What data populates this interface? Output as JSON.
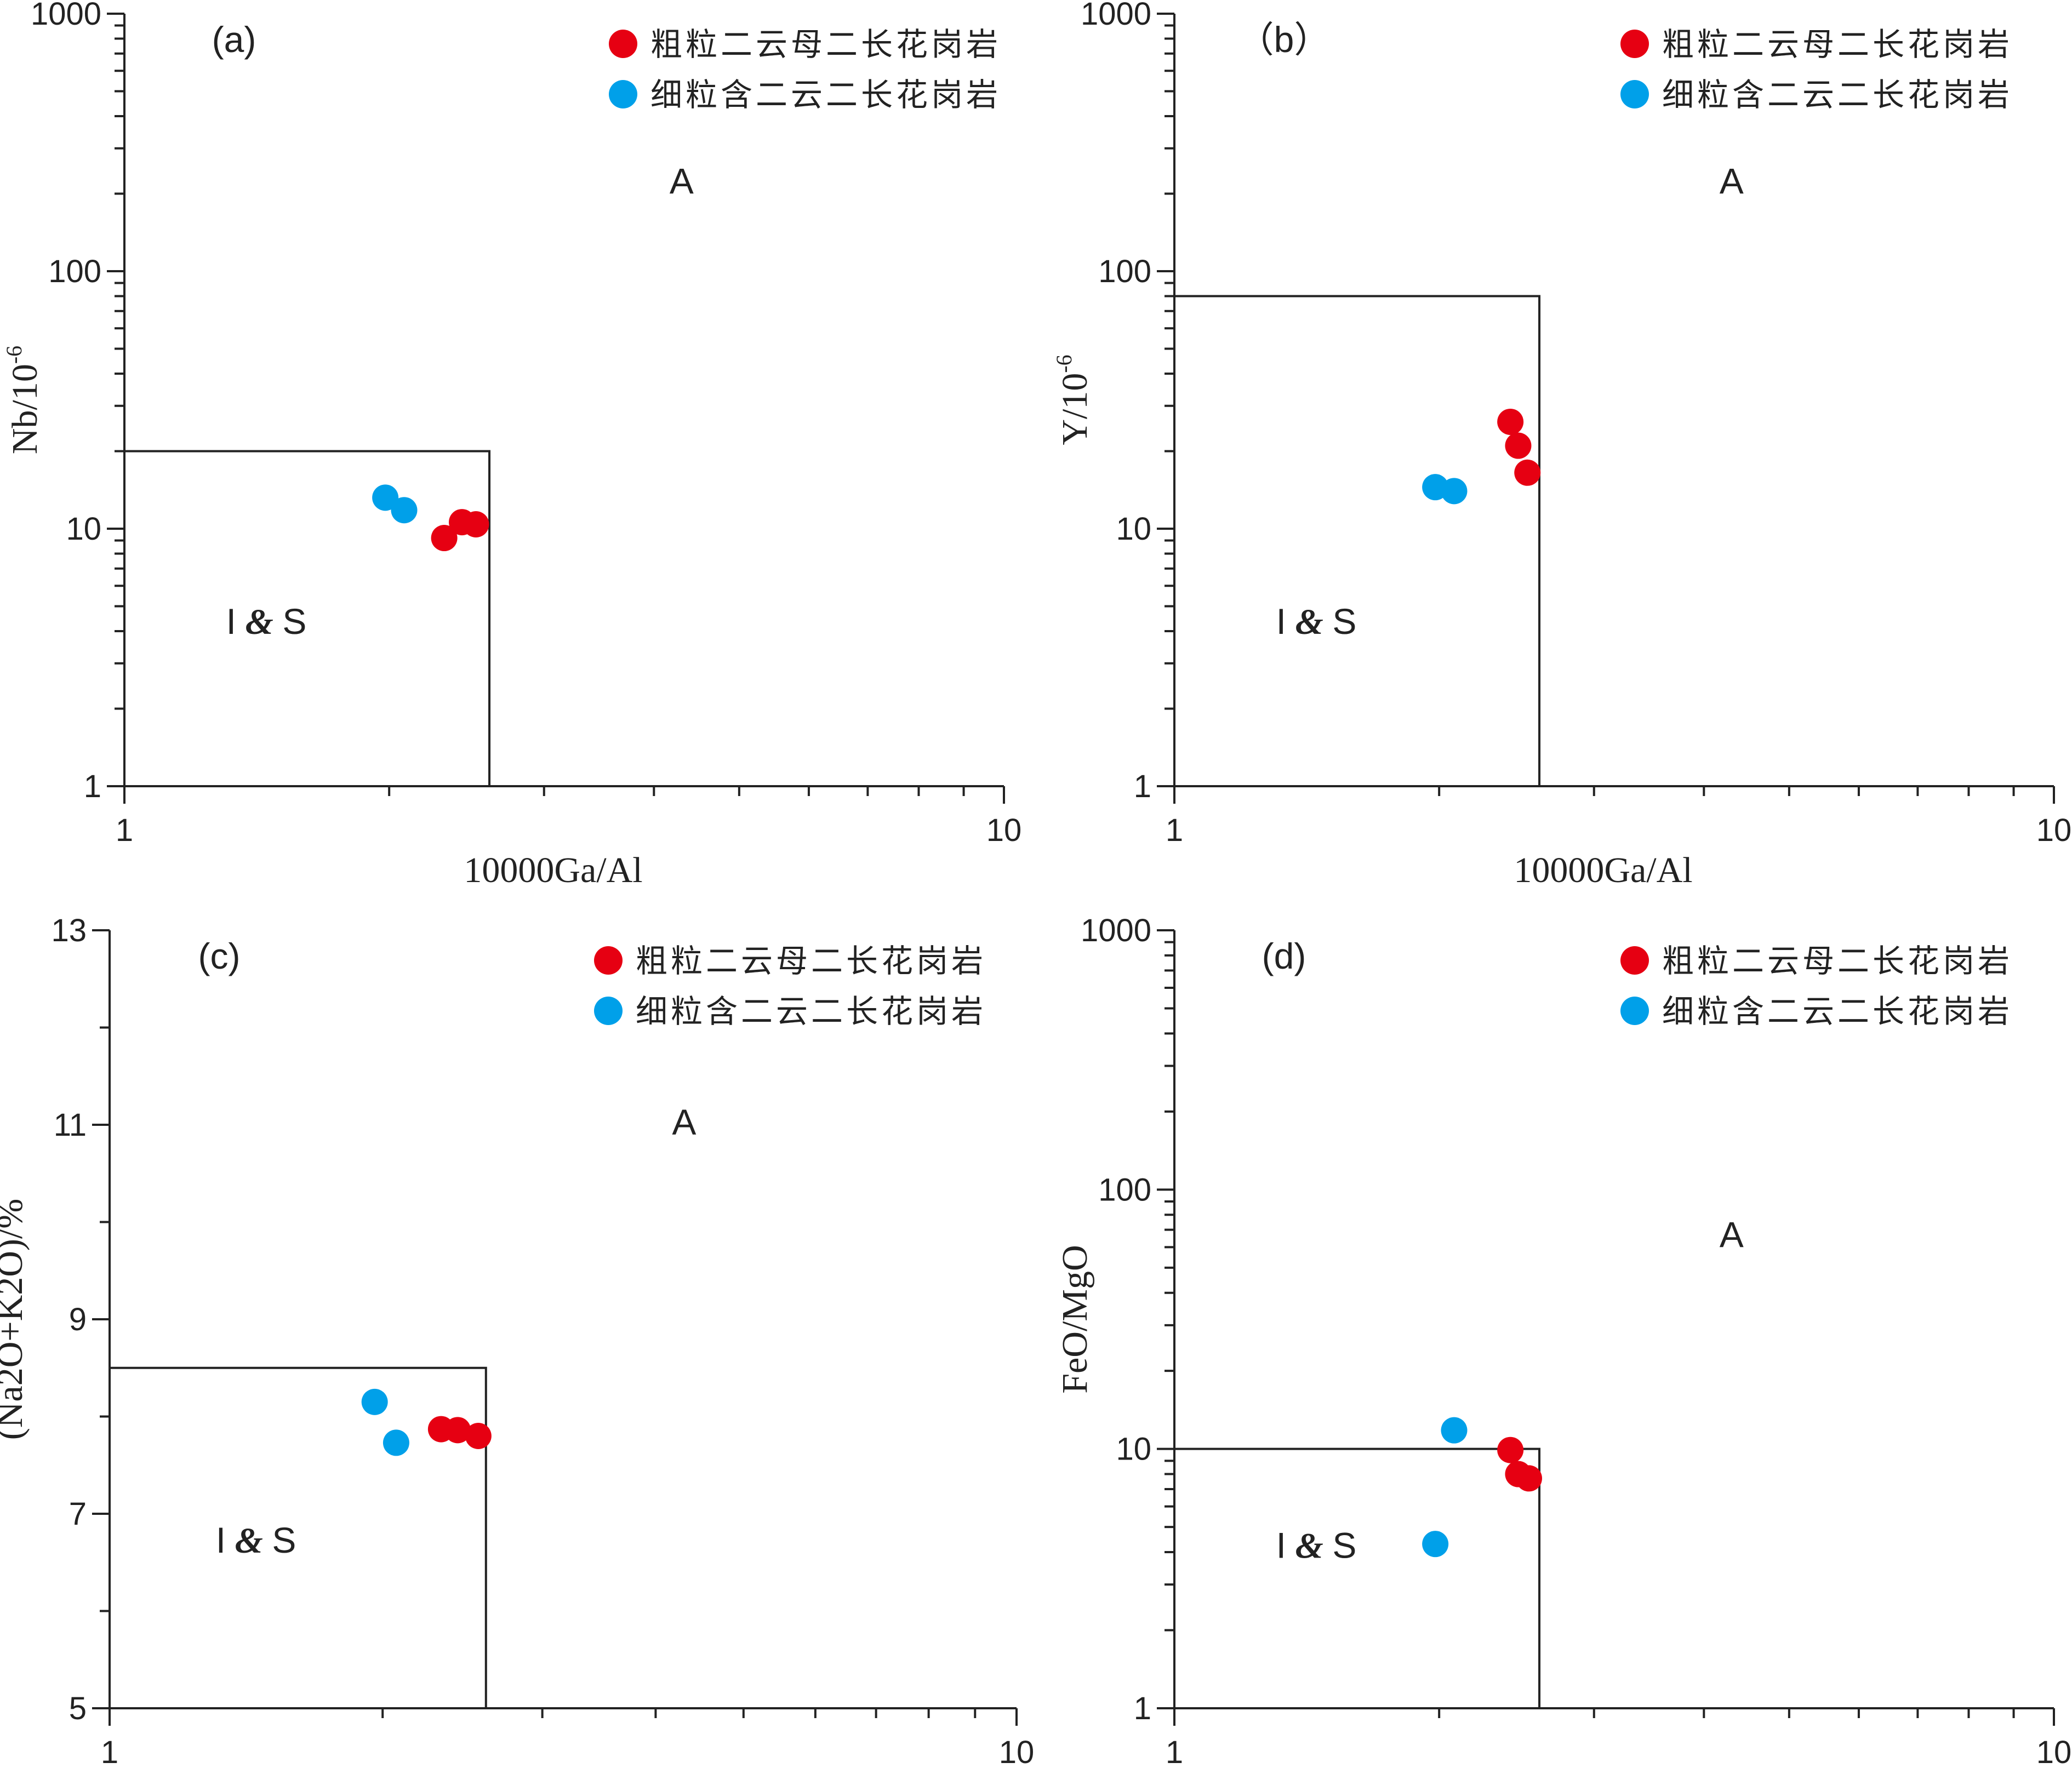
{
  "chart_data": [
    {
      "panel": "(a)",
      "type": "scatter",
      "xlabel": "10000Ga/Al",
      "ylabel_main": "Nb/10",
      "ylabel_sup": "-6",
      "x_scale": "log",
      "xlim": [
        1,
        10
      ],
      "x_ticks": [
        "1",
        "10"
      ],
      "y_scale": "log",
      "ylim": [
        1,
        1000
      ],
      "y_ticks": [
        "1",
        "10",
        "100",
        "1000"
      ],
      "boundary": {
        "x_max": 2.6,
        "y_max": 20
      },
      "regions": [
        {
          "label": "A",
          "x": 4.3,
          "y": 200
        },
        {
          "label_parts": [
            "I",
            "&",
            "S"
          ],
          "x": 1.45,
          "y": 3.9
        }
      ],
      "legend_position": "top-right",
      "series": [
        {
          "name": "粗粒二云母二长花岗岩",
          "color": "#e60012",
          "points": [
            [
              2.31,
              9.2
            ],
            [
              2.42,
              10.6
            ],
            [
              2.51,
              10.4
            ]
          ]
        },
        {
          "name": "细粒含二云二长花岗岩",
          "color": "#00a0e9",
          "points": [
            [
              1.98,
              13.2
            ],
            [
              2.08,
              11.8
            ]
          ]
        }
      ]
    },
    {
      "panel": "（b）",
      "type": "scatter",
      "xlabel": "10000Ga/Al",
      "ylabel_main": "Y/10",
      "ylabel_sup": "-6",
      "x_scale": "log",
      "xlim": [
        1,
        10
      ],
      "x_ticks": [
        "1",
        "10"
      ],
      "y_scale": "log",
      "ylim": [
        1,
        1000
      ],
      "y_ticks": [
        "1",
        "10",
        "100",
        "1000"
      ],
      "boundary": {
        "x_max": 2.6,
        "y_max": 80
      },
      "regions": [
        {
          "label": "A",
          "x": 4.3,
          "y": 200
        },
        {
          "label_parts": [
            "I",
            "&",
            "S"
          ],
          "x": 1.45,
          "y": 3.9
        }
      ],
      "legend_position": "top-right",
      "series": [
        {
          "name": "粗粒二云母二长花岗岩",
          "color": "#e60012",
          "points": [
            [
              2.41,
              26
            ],
            [
              2.46,
              21
            ],
            [
              2.52,
              16.5
            ]
          ]
        },
        {
          "name": "细粒含二云二长花岗岩",
          "color": "#00a0e9",
          "points": [
            [
              1.98,
              14.5
            ],
            [
              2.08,
              14
            ]
          ]
        }
      ]
    },
    {
      "panel": "(c)",
      "type": "scatter",
      "xlabel": "10000Ga/Al",
      "ylabel": "(Na2O+K2O)/%",
      "x_scale": "log",
      "xlim": [
        1,
        10
      ],
      "x_ticks": [
        "1",
        "10"
      ],
      "y_scale": "linear",
      "ylim": [
        5,
        13
      ],
      "y_ticks": [
        "5",
        "7",
        "9",
        "11",
        "13"
      ],
      "boundary": {
        "x_max": 2.6,
        "y_max": 8.5
      },
      "regions": [
        {
          "label": "A",
          "x": 4.3,
          "y": 10.9
        },
        {
          "label_parts": [
            "I",
            "&",
            "S"
          ],
          "x": 1.45,
          "y": 6.6
        }
      ],
      "legend_position": "top-right",
      "series": [
        {
          "name": "粗粒二云母二长花岗岩",
          "color": "#e60012",
          "points": [
            [
              2.32,
              7.87
            ],
            [
              2.42,
              7.86
            ],
            [
              2.55,
              7.8
            ]
          ]
        },
        {
          "name": "细粒含二云二长花岗岩",
          "color": "#00a0e9",
          "points": [
            [
              1.96,
              8.15
            ],
            [
              2.07,
              7.73
            ]
          ]
        }
      ]
    },
    {
      "panel": "(d)",
      "type": "scatter",
      "xlabel": "10000Ga/Al",
      "ylabel": "FeO/MgO",
      "x_scale": "log",
      "xlim": [
        1,
        10
      ],
      "x_ticks": [
        "1",
        "10"
      ],
      "y_scale": "log",
      "ylim": [
        1,
        1000
      ],
      "y_ticks": [
        "1",
        "10",
        "100",
        "1000"
      ],
      "boundary": {
        "x_max": 2.6,
        "y_max": 10
      },
      "regions": [
        {
          "label": "A",
          "x": 4.3,
          "y": 60
        },
        {
          "label_parts": [
            "I",
            "&",
            "S"
          ],
          "x": 1.45,
          "y": 3.8
        }
      ],
      "legend_position": "top-right",
      "series": [
        {
          "name": "粗粒二云母二长花岗岩",
          "color": "#e60012",
          "points": [
            [
              2.41,
              9.9
            ],
            [
              2.46,
              8.0
            ],
            [
              2.53,
              7.7
            ]
          ]
        },
        {
          "name": "细粒含二云二长花岗岩",
          "color": "#00a0e9",
          "points": [
            [
              1.98,
              4.3
            ],
            [
              2.08,
              11.8
            ]
          ]
        }
      ]
    }
  ]
}
